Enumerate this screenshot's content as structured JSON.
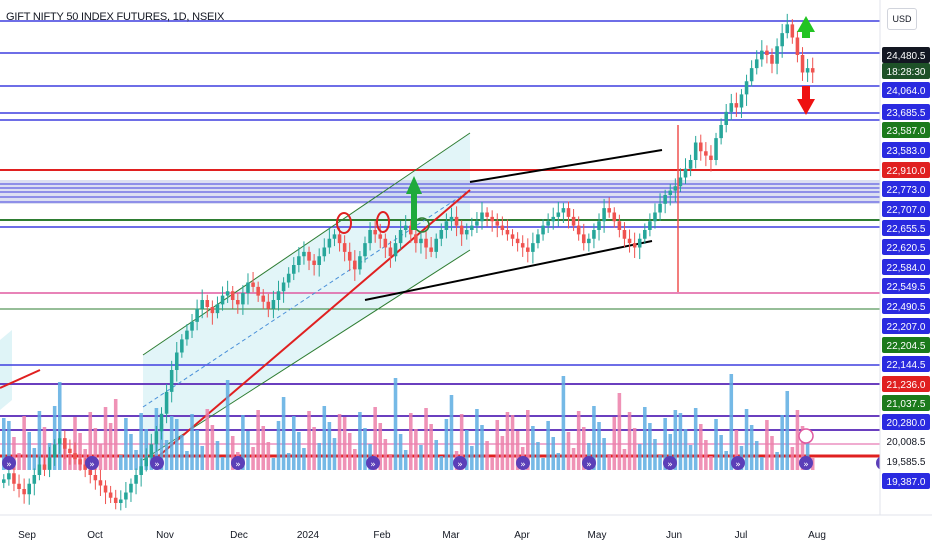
{
  "header": {
    "title": "GIFT NIFTY 50 INDEX FUTURES, 1D, NSEIX",
    "currency": "USD"
  },
  "colors": {
    "up": "#26a69a",
    "down": "#ef5350",
    "blue_line": "#3f3fdf",
    "red_line": "#e02020",
    "green_line": "#2e7d32",
    "purple_line": "#6a3fbf",
    "pink_line": "#e05aa0",
    "channel_fill": "#dff4f7",
    "black_line": "#000000"
  },
  "chart_data": {
    "type": "candlestick",
    "x_labels": [
      "Sep",
      "Oct",
      "Nov",
      "Dec",
      "2024",
      "Feb",
      "Mar",
      "Apr",
      "May",
      "Jun",
      "Jul",
      "Aug"
    ],
    "price_scale_labels": [
      {
        "value": "24,480.5",
        "bg": "#131722",
        "fg": "#ffffff"
      },
      {
        "value": "18:28:30",
        "bg": "#1e5128",
        "fg": "#ffffff"
      },
      {
        "value": "24,064.0",
        "bg": "#2a2ae0",
        "fg": "#ffffff"
      },
      {
        "value": "23,685.5",
        "bg": "#2a2ae0",
        "fg": "#ffffff"
      },
      {
        "value": "23,587.0",
        "bg": "#1b7a1b",
        "fg": "#ffffff"
      },
      {
        "value": "23,583.0",
        "bg": "#2a2ae0",
        "fg": "#ffffff"
      },
      {
        "value": "22,910.0",
        "bg": "#e02020",
        "fg": "#ffffff"
      },
      {
        "value": "22,773.0",
        "bg": "#2a2ae0",
        "fg": "#ffffff"
      },
      {
        "value": "22,707.0",
        "bg": "#2a2ae0",
        "fg": "#ffffff"
      },
      {
        "value": "22,655.5",
        "bg": "#2a2ae0",
        "fg": "#ffffff"
      },
      {
        "value": "22,620.5",
        "bg": "#2a2ae0",
        "fg": "#ffffff"
      },
      {
        "value": "22,584.0",
        "bg": "#2a2ae0",
        "fg": "#ffffff"
      },
      {
        "value": "22,549.5",
        "bg": "#2a2ae0",
        "fg": "#ffffff"
      },
      {
        "value": "22,490.5",
        "bg": "#2a2ae0",
        "fg": "#ffffff"
      },
      {
        "value": "22,207.0",
        "bg": "#2a2ae0",
        "fg": "#ffffff"
      },
      {
        "value": "22,204.5",
        "bg": "#1b7a1b",
        "fg": "#ffffff"
      },
      {
        "value": "22,144.5",
        "bg": "#2a2ae0",
        "fg": "#ffffff"
      },
      {
        "value": "21,236.0",
        "bg": "#e02020",
        "fg": "#ffffff"
      },
      {
        "value": "21,037.5",
        "bg": "#1b7a1b",
        "fg": "#ffffff"
      },
      {
        "value": "20,280.0",
        "bg": "#2a2ae0",
        "fg": "#ffffff"
      },
      {
        "value": "20,008.5",
        "bg": "#ffffff",
        "fg": "#131722"
      },
      {
        "value": "19,585.5",
        "bg": "#ffffff",
        "fg": "#131722"
      },
      {
        "value": "19,387.0",
        "bg": "#2a2ae0",
        "fg": "#ffffff"
      }
    ],
    "price_range": [
      19300,
      24900
    ],
    "closes": [
      19650,
      19720,
      19600,
      19540,
      19480,
      19600,
      19700,
      19820,
      19760,
      19900,
      20050,
      20120,
      20000,
      19950,
      19880,
      19820,
      19760,
      19700,
      19640,
      19580,
      19500,
      19440,
      19380,
      19420,
      19500,
      19600,
      19700,
      19800,
      19900,
      20050,
      20200,
      20400,
      20650,
      20900,
      21100,
      21250,
      21350,
      21450,
      21600,
      21700,
      21620,
      21550,
      21650,
      21750,
      21800,
      21700,
      21650,
      21780,
      21900,
      21850,
      21750,
      21680,
      21600,
      21700,
      21800,
      21900,
      22000,
      22100,
      22200,
      22250,
      22150,
      22100,
      22200,
      22300,
      22400,
      22450,
      22350,
      22250,
      22150,
      22050,
      22200,
      22350,
      22500,
      22450,
      22400,
      22300,
      22200,
      22350,
      22500,
      22550,
      22450,
      22350,
      22400,
      22300,
      22250,
      22400,
      22500,
      22600,
      22650,
      22550,
      22450,
      22500,
      22550,
      22600,
      22700,
      22650,
      22600,
      22550,
      22500,
      22450,
      22400,
      22350,
      22300,
      22250,
      22350,
      22450,
      22550,
      22600,
      22650,
      22700,
      22750,
      22650,
      22550,
      22450,
      22350,
      22400,
      22500,
      22600,
      22750,
      22700,
      22600,
      22500,
      22400,
      22350,
      22300,
      22400,
      22500,
      22600,
      22700,
      22800,
      22900,
      22950,
      23000,
      23100,
      23200,
      23300,
      23500,
      23400,
      23350,
      23300,
      23550,
      23700,
      23850,
      23950,
      23900,
      24050,
      24200,
      24350,
      24450,
      24550,
      24500,
      24400,
      24600,
      24750,
      24850,
      24700,
      24500,
      24300,
      24350,
      24300
    ],
    "volume_range": [
      0,
      1
    ]
  }
}
